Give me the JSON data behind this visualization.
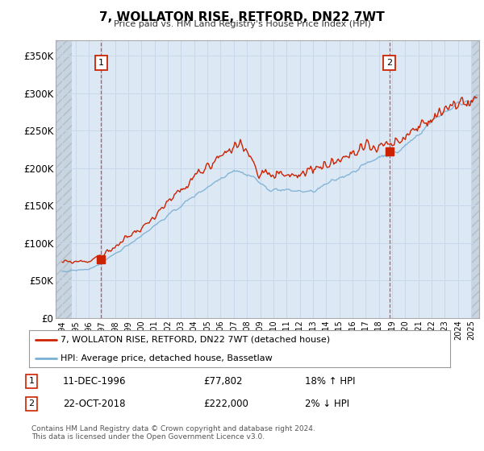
{
  "title": "7, WOLLATON RISE, RETFORD, DN22 7WT",
  "subtitle": "Price paid vs. HM Land Registry's House Price Index (HPI)",
  "ylim": [
    0,
    370000
  ],
  "yticks": [
    0,
    50000,
    100000,
    150000,
    200000,
    250000,
    300000,
    350000
  ],
  "ytick_labels": [
    "£0",
    "£50K",
    "£100K",
    "£150K",
    "£200K",
    "£250K",
    "£300K",
    "£350K"
  ],
  "xlim_start": 1993.5,
  "xlim_end": 2025.6,
  "xticks": [
    1994,
    1995,
    1996,
    1997,
    1998,
    1999,
    2000,
    2001,
    2002,
    2003,
    2004,
    2005,
    2006,
    2007,
    2008,
    2009,
    2010,
    2011,
    2012,
    2013,
    2014,
    2015,
    2016,
    2017,
    2018,
    2019,
    2020,
    2021,
    2022,
    2023,
    2024,
    2025
  ],
  "hpi_color": "#7bafd4",
  "price_color": "#cc2200",
  "grid_color": "#c8d8ea",
  "bg_color": "#ffffff",
  "chart_bg": "#dce9f5",
  "hatch_color": "#c8d4e0",
  "legend_label_price": "7, WOLLATON RISE, RETFORD, DN22 7WT (detached house)",
  "legend_label_hpi": "HPI: Average price, detached house, Bassetlaw",
  "annotation1_label": "1",
  "annotation1_date": "11-DEC-1996",
  "annotation1_price": "£77,802",
  "annotation1_hpi": "18% ↑ HPI",
  "annotation2_label": "2",
  "annotation2_date": "22-OCT-2018",
  "annotation2_price": "£222,000",
  "annotation2_hpi": "2% ↓ HPI",
  "footer": "Contains HM Land Registry data © Crown copyright and database right 2024.\nThis data is licensed under the Open Government Licence v3.0.",
  "sale1_x": 1996.95,
  "sale1_y": 77802,
  "sale2_x": 2018.8,
  "sale2_y": 222000,
  "hatch_left_end": 1994.7,
  "hatch_right_start": 2025.0
}
